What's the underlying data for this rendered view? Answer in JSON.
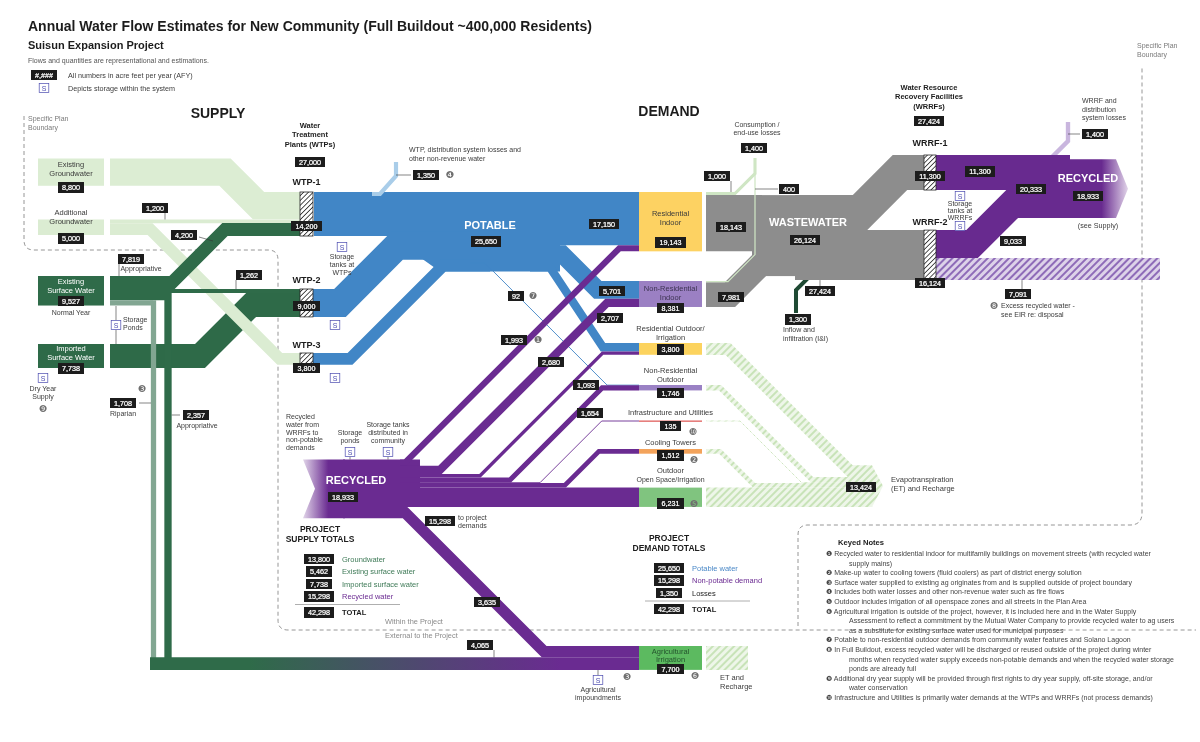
{
  "chart_data": [
    {
      "type": "other",
      "title": "Annual Water Flow Estimates for New Community (Full Buildout ~400,000 Residents)",
      "subtitle": "Suisun Expansion Project",
      "annotations": [
        "Flows and quantities are representational and estimations.",
        "#,###",
        "All numbers in acre feet per year (AFY)",
        "S",
        "Depicts storage within the system",
        "SUPPLY",
        "DEMAND",
        "Specific Plan Boundary",
        "Specific Plan Boundary",
        "Appropriative",
        "Normal Year",
        "Storage Ponds",
        "Dry Year Supply",
        "Riparian",
        "Appropriative",
        "Storage tanks at WTPs",
        "Storage tanks at WRRFs",
        "(see Supply)",
        "Recycled water from WRRFs to non-potable demands",
        "Storage ponds",
        "Storage tanks distributed in community",
        "to project demands",
        "Open Space/Irrigation",
        "Agricultural impoundments",
        "Within the Project",
        "External to the Project",
        "❹",
        "❼",
        "❶",
        "❿",
        "❷",
        "❺",
        "❻",
        "❸",
        "❽",
        "❸",
        "❾",
        "1,200",
        "7,819",
        "4,200",
        "1,262",
        "2,357",
        "1,708",
        "4,065",
        "17,150",
        "5,701",
        "92",
        "2,707",
        "15,298",
        "3,635",
        "1,993",
        "2,680",
        "1,093",
        "1,654",
        "11,300",
        "9,033",
        "20,333",
        "18,143",
        "7,981",
        "27,424",
        "1,000",
        "400"
      ],
      "categories": [
        "Existing Groundwater",
        "Additional Groundwater",
        "Existing Surface Water",
        "Imported Surface Water",
        "Water Treatment Plants (WTPs)",
        "WTP-1",
        "WTP-2",
        "WTP-3",
        "WTP, distribution system losses and other non-revenue water",
        "POTABLE",
        "Residential Indoor",
        "Non-Residential Indoor",
        "Residential Outdoor/Irrigation",
        "Non-Residential Outdoor",
        "Infrastructure and Utilities",
        "Cooling Towers",
        "Outdoor",
        "Agricultural Irrigation",
        "Consumption / end-use losses",
        "WASTEWATER",
        "Inflow and infiltration (I&I)",
        "Water Resource Recovery Facilities (WRRFs)",
        "WRRF-1",
        "WRRF-2",
        "WRRF and distribution system losses",
        "RECYCLED",
        "Excess recycled water - see EIR re: disposal",
        "RECYCLED",
        "Evapotranspiration (ET) and Recharge",
        "ET and Recharge"
      ],
      "values": [
        8800,
        5000,
        9527,
        7738,
        27000,
        14200,
        9000,
        3800,
        1350,
        25650,
        19143,
        8381,
        3800,
        1746,
        135,
        1512,
        6231,
        7700,
        1400,
        26124,
        1300,
        27424,
        11300,
        16124,
        1400,
        18933,
        7091,
        18933,
        13424,
        null
      ],
      "value_labels": [
        "8,800",
        "5,000",
        "9,527",
        "7,738",
        "27,000",
        "14,200",
        "9,000",
        "3,800",
        "1,350",
        "25,650",
        "19,143",
        "8,381",
        "3,800",
        "1,746",
        "135",
        "1,512",
        "6,231",
        "7,700",
        "1,400",
        "26,124",
        "1,300",
        "27,424",
        "11,300",
        "16,124",
        "1,400",
        "18,933",
        "7,091",
        "18,933",
        "13,424",
        null
      ],
      "colors": [
        "#dcedd3",
        "#dbecd2",
        "#2f6b49",
        "#2e6a48",
        null,
        "#222222",
        "#242424",
        "#262626",
        "#a9cde9",
        "#4186c6",
        "#fdd262",
        "#9b80c3",
        "#fcd35e",
        "#9a81c4",
        "#e0605e",
        "#f3a35b",
        "#80c47f",
        "#5cba60",
        "#cfe6c4",
        "#8d8d8d",
        "#1f4a34",
        null,
        "#282828",
        "#2a2a2a",
        "#c9b6de",
        "#682a8f",
        "#8e6bb8",
        "#6a2b91",
        "#c8e3b8",
        null
      ]
    },
    {
      "type": "other",
      "title": "PROJECT SUPPLY TOTALS",
      "categories": [
        "Groundwater",
        "Existing surface water",
        "Imported surface water",
        "Recycled water",
        "TOTAL"
      ],
      "value_labels": [
        "13,800",
        "5,462",
        "7,738",
        "15,298",
        "42,298"
      ],
      "colors": [
        "#3e7a57",
        "#3e7a57",
        "#3e7a57",
        "#6a2a91",
        "#1c1c1c"
      ]
    },
    {
      "type": "other",
      "title": "PROJECT DEMAND TOTALS",
      "categories": [
        "Potable water",
        "Non-potable demand",
        "Losses",
        "TOTAL"
      ],
      "value_labels": [
        "25,650",
        "15,298",
        "1,350",
        "42,298"
      ],
      "colors": [
        "#4a88c7",
        "#6a2a91",
        "#1c1c1c",
        "#1c1c1c"
      ]
    },
    {
      "type": "other",
      "title": "Keyed Notes",
      "annotations": [
        "❶ Recycled water to residential indoor for multifamily buildings on movement streets (with recycled water supply mains)",
        "❷ Make-up water to cooling towers (fluid coolers) as part of district energy solution",
        "❸ Surface water supplied to existing ag originates from and is supplied outside of project boundary",
        "❹ Includes both water losses and other non-revenue water such as fire flows",
        "❺ Outdoor includes irrigation of all openspace zones and all streets in the Plan Area",
        "❻ Agricultural irrigation is outside of the project, however, it is included here and in the Water Supply Assessment to reflect a commitment by the Mutual Water Company to provide recycled water to ag users as a substitute for existing surface water used for municipal purposes",
        "❼ Potable to non-residential outdoor demands from community water features and Solano Lagoon",
        "❽ In Full Buildout, excess recycled water will be discharged or reused outside of the project during winter months when recycled water supply exceeds non-potable demands and when the recycled water storage ponds are already full",
        "❾ Additional dry year supply will be provided through first rights to dry year supply, off-site storage, and/or water conservation",
        "❿ Infrastructure and Utilities is primarily water demands at the WTPs and WRRFs (not process demands)"
      ]
    }
  ]
}
